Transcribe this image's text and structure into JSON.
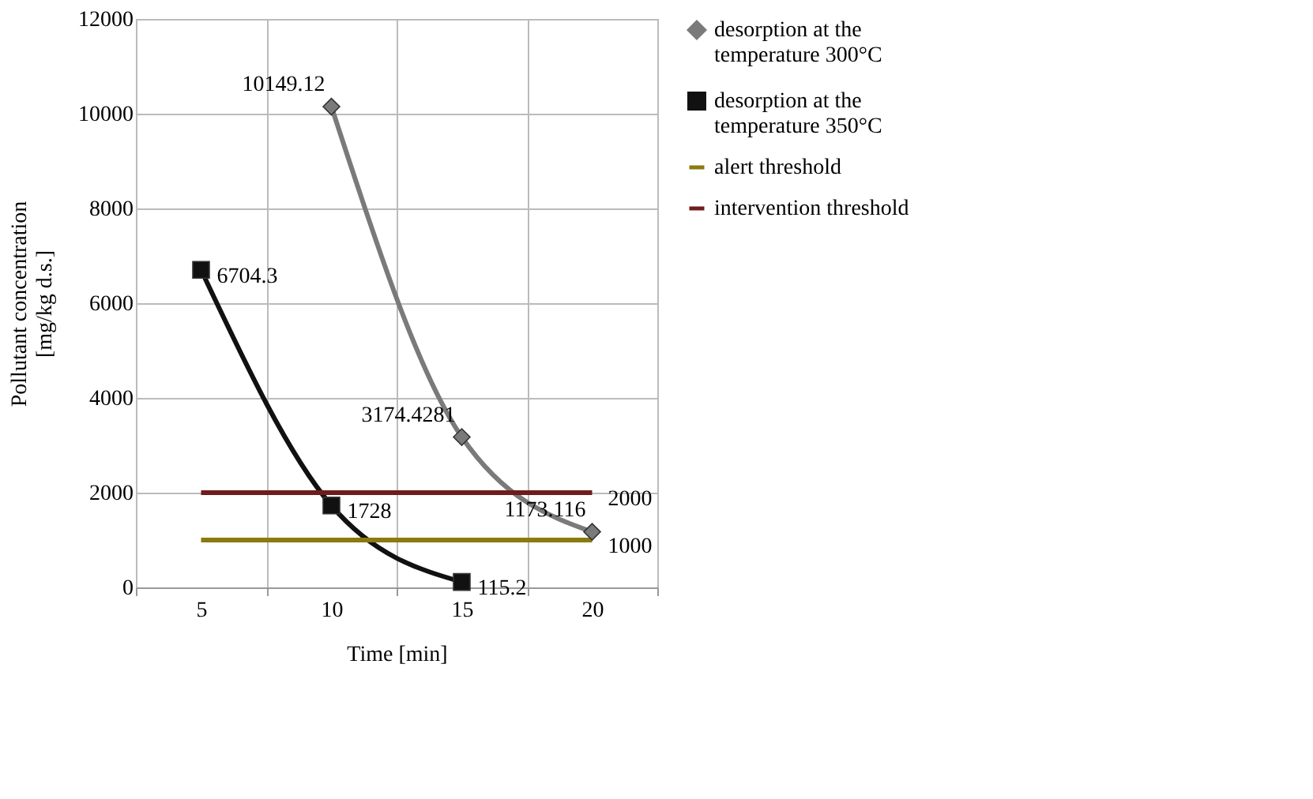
{
  "chart_data": {
    "type": "line",
    "categories": [
      "5",
      "10",
      "15",
      "20"
    ],
    "xlabel": "Time [min]",
    "ylabel": "Pollutant concentration [mg/kg d.s.]",
    "ylim": [
      0,
      12000
    ],
    "yticks": [
      0,
      2000,
      4000,
      6000,
      8000,
      10000,
      12000
    ],
    "grid": true,
    "legend": "right",
    "line_style": "solid",
    "series": [
      {
        "name": "desorption at the temperature 300°C",
        "color": "#7a7a7a",
        "marker": "diamond",
        "values": [
          null,
          10149.12,
          3174.4281,
          1173.116
        ],
        "value_labels": [
          null,
          "10149.12",
          "3174.4281",
          "1173.116"
        ]
      },
      {
        "name": "desorption at the temperature 350°C",
        "color": "#111111",
        "marker": "square",
        "values": [
          6704.3,
          1728,
          115.2,
          null
        ],
        "value_labels": [
          "6704.3",
          "1728",
          "115.2",
          null
        ]
      },
      {
        "name": "alert threshold",
        "color": "#8a7a10",
        "marker": "none",
        "values": [
          1000,
          1000,
          1000,
          1000
        ],
        "value_labels": [
          null,
          null,
          null,
          "1000"
        ]
      },
      {
        "name": "intervention threshold",
        "color": "#6e1c1c",
        "marker": "none",
        "values": [
          2000,
          2000,
          2000,
          2000
        ],
        "value_labels": [
          null,
          null,
          null,
          "2000"
        ]
      }
    ]
  }
}
